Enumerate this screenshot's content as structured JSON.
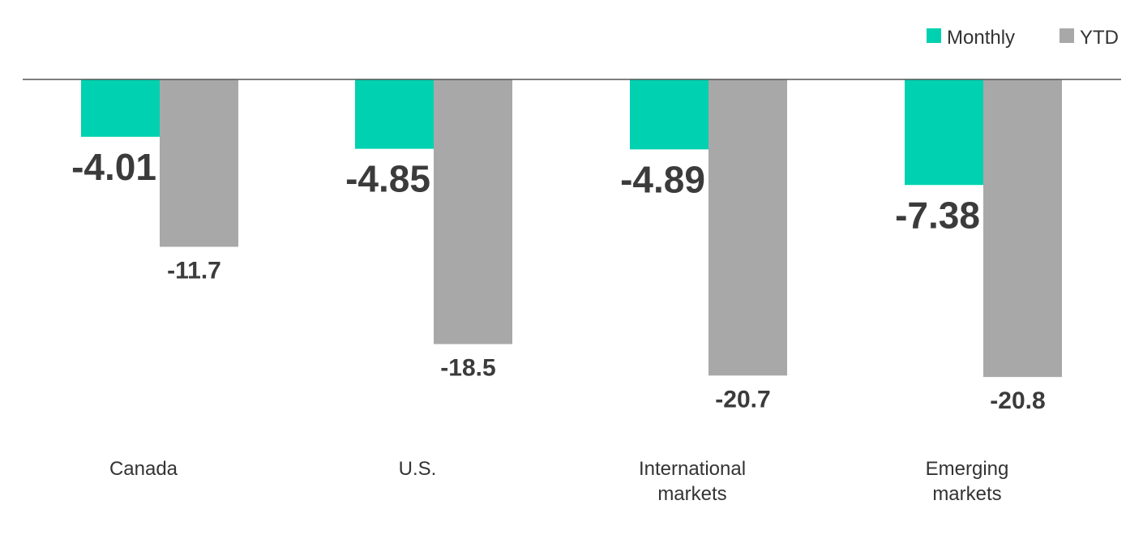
{
  "chart_data": {
    "type": "bar",
    "categories": [
      [
        "Canada"
      ],
      [
        "U.S."
      ],
      [
        "International",
        "markets"
      ],
      [
        "Emerging",
        "markets"
      ]
    ],
    "series": [
      {
        "name": "Monthly",
        "color": "#00d1b0",
        "values": [
          -4.01,
          -4.85,
          -4.89,
          -7.38
        ],
        "labels": [
          "-4.01",
          "-4.85",
          "-4.89",
          "-7.38"
        ]
      },
      {
        "name": "YTD",
        "color": "#a8a8a8",
        "values": [
          -11.7,
          -18.5,
          -20.7,
          -20.8
        ],
        "labels": [
          "-11.7",
          "-18.5",
          "-20.7",
          "-20.8"
        ]
      }
    ],
    "ylim": [
      -22,
      0
    ],
    "legend": "top-right",
    "grid": false,
    "baseline_color": "#555555",
    "label_color": "#3b3b3b"
  }
}
